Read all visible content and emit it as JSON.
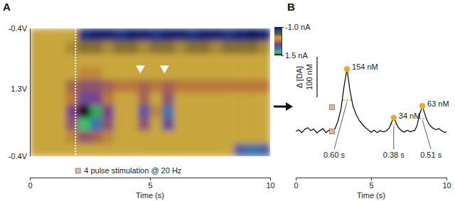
{
  "chart_data": [
    {
      "type": "heatmap",
      "title": "A",
      "xlabel": "Time (s)",
      "xlim": [
        0,
        10
      ],
      "xticks": [
        0,
        5,
        10
      ],
      "ylim": [
        0,
        1
      ],
      "yticks": [
        {
          "value": 0,
          "label": "-0.4V"
        },
        {
          "value": 0.47,
          "label": "1.3V"
        },
        {
          "value": 1,
          "label": "-0.4V"
        }
      ],
      "x": [
        0,
        0.5,
        1,
        1.5,
        2,
        2.5,
        3,
        3.5,
        4,
        4.5,
        5,
        5.5,
        6,
        6.5,
        7,
        7.5,
        8,
        8.5,
        9,
        9.5
      ],
      "y": [
        0,
        0.1,
        0.2,
        0.3,
        0.4,
        0.5,
        0.6,
        0.7,
        0.8,
        0.9
      ],
      "cells": [
        [
          -0.1,
          -0.1,
          -0.1,
          -0.1,
          -0.8,
          -0.9,
          -0.9,
          -0.8,
          -0.9,
          -0.9,
          -0.8,
          -0.9,
          -0.9,
          -0.8,
          -0.9,
          -0.9,
          -0.8,
          -0.9,
          -1.0,
          -0.9
        ],
        [
          -0.1,
          -0.1,
          -0.1,
          -0.2,
          -0.3,
          -0.3,
          -0.2,
          -0.3,
          -0.3,
          -0.2,
          -0.3,
          -0.3,
          -0.2,
          -0.3,
          -0.3,
          -0.2,
          -0.3,
          -0.3,
          -0.3,
          -0.2
        ],
        [
          -0.1,
          -0.1,
          -0.1,
          -0.1,
          -0.1,
          -0.1,
          -0.1,
          -0.1,
          -0.1,
          -0.1,
          -0.1,
          -0.1,
          -0.1,
          -0.1,
          -0.1,
          -0.1,
          -0.1,
          -0.1,
          -0.1,
          -0.1
        ],
        [
          -0.1,
          -0.1,
          -0.1,
          -0.1,
          0.1,
          0.1,
          -0.1,
          -0.1,
          -0.1,
          -0.1,
          -0.1,
          -0.1,
          -0.1,
          -0.1,
          -0.1,
          -0.1,
          -0.1,
          -0.1,
          -0.1,
          -0.1
        ],
        [
          -0.1,
          -0.1,
          -0.1,
          0.3,
          0.4,
          0.4,
          0.3,
          0.2,
          0.2,
          0.3,
          0.2,
          0.3,
          0.2,
          0.2,
          0.2,
          0.2,
          0.2,
          0.2,
          0.2,
          0.2
        ],
        [
          -0.1,
          -0.1,
          -0.1,
          0.2,
          0.6,
          0.5,
          0.2,
          -0.1,
          -0.1,
          0.3,
          -0.1,
          0.4,
          -0.1,
          -0.1,
          -0.1,
          -0.1,
          -0.1,
          -0.1,
          -0.1,
          -0.1
        ],
        [
          -0.1,
          -0.1,
          -0.1,
          0.5,
          1.5,
          1.3,
          0.5,
          -0.1,
          -0.1,
          0.7,
          0.1,
          0.9,
          -0.1,
          -0.1,
          -0.1,
          -0.1,
          -0.1,
          -0.1,
          -0.1,
          -0.1
        ],
        [
          -0.1,
          -0.1,
          -0.1,
          0.4,
          1.2,
          0.9,
          0.4,
          -0.1,
          -0.1,
          0.4,
          -0.1,
          0.6,
          -0.1,
          -0.1,
          -0.1,
          -0.1,
          -0.1,
          -0.1,
          -0.1,
          -0.1
        ],
        [
          -0.1,
          -0.1,
          -0.1,
          0.1,
          0.4,
          0.3,
          0.1,
          -0.1,
          -0.1,
          -0.1,
          -0.1,
          -0.1,
          -0.1,
          -0.1,
          -0.1,
          -0.1,
          -0.1,
          -0.1,
          -0.1,
          -0.1
        ],
        [
          -0.1,
          -0.1,
          -0.1,
          -0.1,
          -0.1,
          -0.1,
          -0.1,
          -0.1,
          -0.1,
          -0.1,
          -0.1,
          -0.1,
          -0.1,
          -0.1,
          -0.1,
          -0.1,
          -0.1,
          0.8,
          0.9,
          0.8
        ]
      ],
      "colorbar": {
        "range": [
          -1.0,
          1.5
        ],
        "ticks": [
          {
            "value": -1.0,
            "label": "-1.0 nA"
          },
          {
            "value": 1.5,
            "label": "1.5 nA"
          }
        ]
      },
      "stimulation": {
        "x": 1.9,
        "label": "4 pulse stimulation @ 20 Hz"
      },
      "triangles": [
        {
          "x": 4.6,
          "y": 0.31
        },
        {
          "x": 5.6,
          "y": 0.31
        }
      ]
    },
    {
      "type": "line",
      "title": "B",
      "xlabel": "Time (s)",
      "ylabel": "Δ [DA]",
      "xlim": [
        0,
        10
      ],
      "xticks": [
        0,
        5,
        10
      ],
      "tick_labels": "x",
      "color": "#111111",
      "x": [
        0,
        0.2,
        0.4,
        0.6,
        0.8,
        1.0,
        1.2,
        1.4,
        1.6,
        1.8,
        2.0,
        2.2,
        2.4,
        2.6,
        2.8,
        3.0,
        3.2,
        3.4,
        3.6,
        3.8,
        4.0,
        4.2,
        4.4,
        4.6,
        4.8,
        5.0,
        5.2,
        5.4,
        5.6,
        5.8,
        6.0,
        6.2,
        6.35,
        6.5,
        6.65,
        6.8,
        7.0,
        7.2,
        7.4,
        7.6,
        7.8,
        7.9,
        8.05,
        8.2,
        8.4,
        8.55,
        8.7,
        8.9,
        9.1,
        9.3,
        9.5,
        9.7,
        9.9,
        10
      ],
      "values": [
        0,
        4,
        -3,
        5,
        9,
        2,
        6,
        -4,
        2,
        7,
        -3,
        3,
        0,
        6,
        25,
        55,
        110,
        154,
        100,
        62,
        42,
        28,
        18,
        10,
        4,
        -2,
        3,
        -3,
        2,
        -1,
        1,
        8,
        22,
        34,
        22,
        10,
        2,
        -2,
        3,
        -1,
        2,
        2,
        15,
        40,
        63,
        45,
        28,
        15,
        8,
        4,
        7,
        1,
        -3,
        0
      ],
      "stimulation": {
        "x": 2.4,
        "values": [
          0,
          60
        ]
      },
      "scale_bar": {
        "value": 100,
        "label": "100 nM"
      },
      "peaks": [
        {
          "x": 3.4,
          "value": 154,
          "label": "154 nM",
          "half_height": 77,
          "half_start": 3.1,
          "half_width": 0.6,
          "half_width_label": "0.60 s"
        },
        {
          "x": 6.5,
          "value": 34,
          "label": "34 nM",
          "half_height": 17,
          "half_start": 6.31,
          "half_width": 0.38,
          "half_width_label": "0.38 s"
        },
        {
          "x": 8.4,
          "value": 63,
          "label": "63 nM",
          "half_height": 31.5,
          "half_start": 8.15,
          "half_width": 0.51,
          "half_width_label": "0.51 s"
        }
      ]
    }
  ]
}
